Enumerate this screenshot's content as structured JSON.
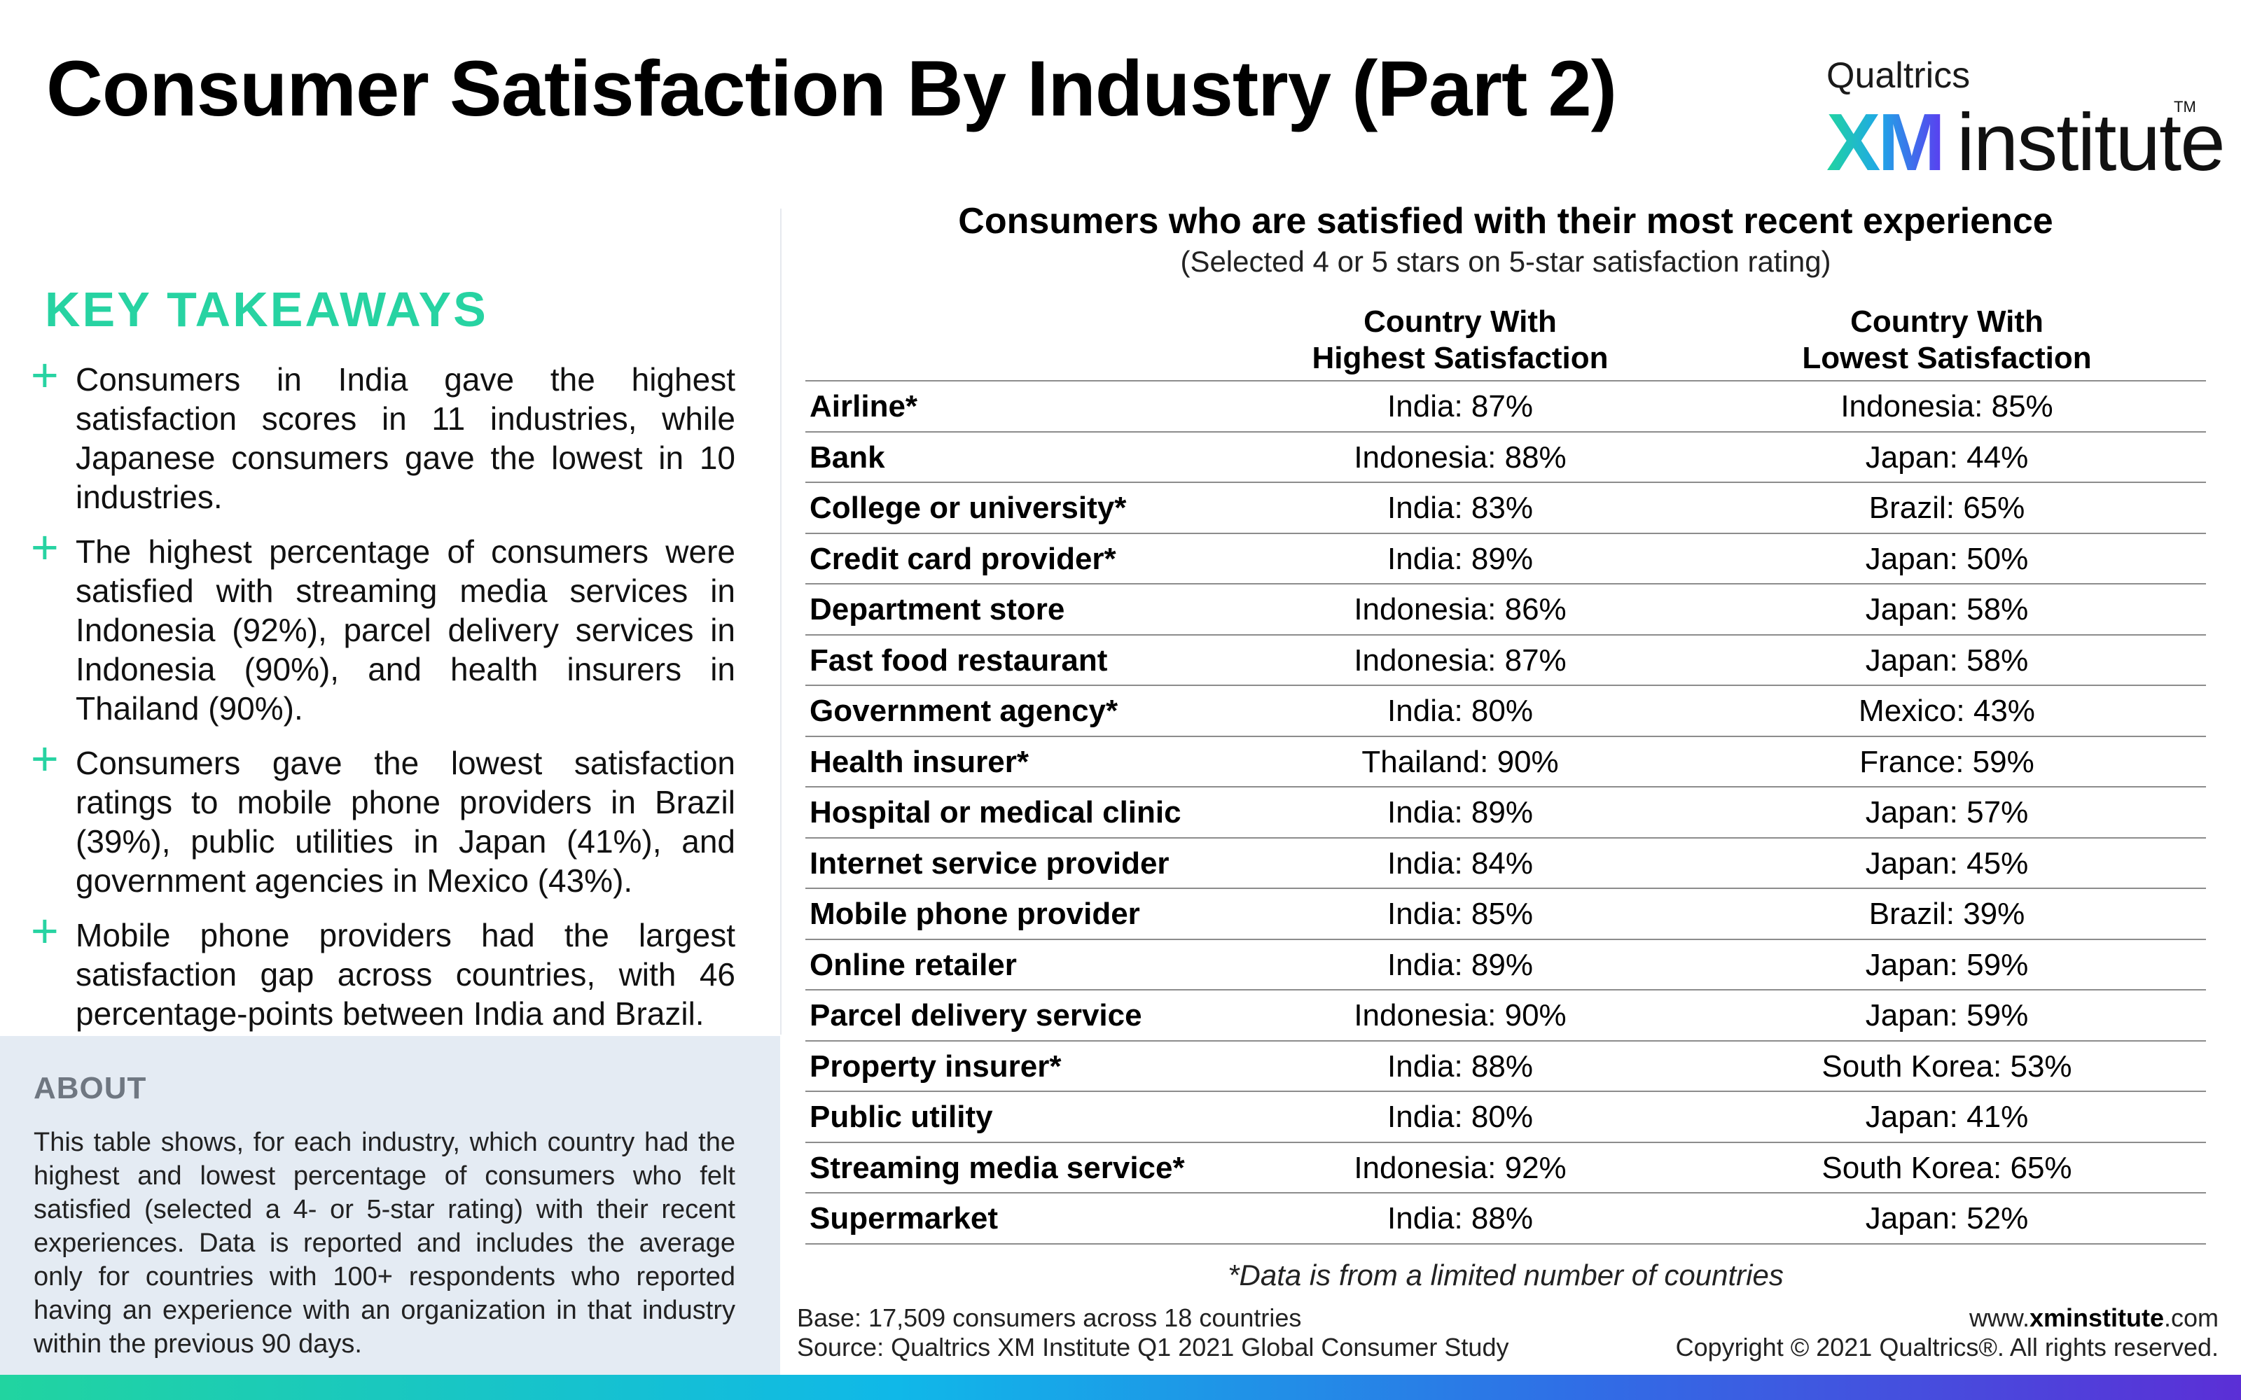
{
  "title": "Consumer Satisfaction By Industry (Part 2)",
  "logo": {
    "brand": "Qualtrics",
    "xm": "XM",
    "word": "institute",
    "tm": "TM"
  },
  "key_takeaways": {
    "heading": "KEY TAKEAWAYS",
    "bullet_symbol": "+",
    "items": [
      "Consumers in India gave the highest satisfaction scores in 11 industries, while Japanese consumers gave the lowest in 10 industries.",
      "The highest percentage of consumers were satisfied with streaming media services in Indonesia (92%), parcel delivery services in Indonesia (90%), and health insurers in Thailand (90%).",
      "Consumers gave the lowest satisfaction ratings to mobile phone providers in Brazil (39%), public utilities in Japan (41%), and government agencies in Mexico (43%).",
      "Mobile phone providers had the largest satisfaction gap across countries, with 46 percentage-points between India and Brazil."
    ]
  },
  "about": {
    "heading": "ABOUT",
    "text": "This table shows, for each industry, which country had the highest and lowest percentage of consumers who felt satisfied (selected a 4- or 5-star rating) with their recent experiences. Data is reported and includes the average only for countries with 100+ respondents who reported having an experience with an organization in that industry within the previous 90 days."
  },
  "table": {
    "title": "Consumers who are satisfied with their most recent experience",
    "subtitle": "(Selected 4 or 5 stars on 5-star satisfaction rating)",
    "col_highest_line1": "Country With",
    "col_highest_line2": "Highest Satisfaction",
    "col_lowest_line1": "Country With",
    "col_lowest_line2": "Lowest Satisfaction",
    "rows": [
      {
        "industry": "Airline*",
        "highest": "India: 87%",
        "lowest": "Indonesia: 85%"
      },
      {
        "industry": "Bank",
        "highest": "Indonesia: 88%",
        "lowest": "Japan: 44%"
      },
      {
        "industry": "College or university*",
        "highest": "India: 83%",
        "lowest": "Brazil: 65%"
      },
      {
        "industry": "Credit card provider*",
        "highest": "India: 89%",
        "lowest": "Japan: 50%"
      },
      {
        "industry": "Department store",
        "highest": "Indonesia: 86%",
        "lowest": "Japan: 58%"
      },
      {
        "industry": "Fast food restaurant",
        "highest": "Indonesia: 87%",
        "lowest": "Japan: 58%"
      },
      {
        "industry": "Government agency*",
        "highest": "India: 80%",
        "lowest": "Mexico: 43%"
      },
      {
        "industry": "Health insurer*",
        "highest": "Thailand: 90%",
        "lowest": "France: 59%"
      },
      {
        "industry": "Hospital or medical clinic",
        "highest": "India: 89%",
        "lowest": "Japan: 57%"
      },
      {
        "industry": "Internet service provider",
        "highest": "India: 84%",
        "lowest": "Japan: 45%"
      },
      {
        "industry": "Mobile phone provider",
        "highest": "India: 85%",
        "lowest": "Brazil: 39%"
      },
      {
        "industry": "Online retailer",
        "highest": "India: 89%",
        "lowest": "Japan: 59%"
      },
      {
        "industry": "Parcel delivery service",
        "highest": "Indonesia: 90%",
        "lowest": "Japan: 59%"
      },
      {
        "industry": "Property insurer*",
        "highest": "India: 88%",
        "lowest": "South Korea: 53%"
      },
      {
        "industry": "Public utility",
        "highest": "India: 80%",
        "lowest": "Japan: 41%"
      },
      {
        "industry": "Streaming media service*",
        "highest": "Indonesia: 92%",
        "lowest": "South Korea: 65%"
      },
      {
        "industry": "Supermarket",
        "highest": "India: 88%",
        "lowest": "Japan: 52%"
      }
    ],
    "footnote": "*Data is from a limited number of countries"
  },
  "footer": {
    "base": "Base: 17,509 consumers across 18 countries",
    "source": "Source: Qualtrics XM Institute Q1 2021 Global Consumer Study",
    "website_prefix": "www.",
    "website_bold": "xminstitute",
    "website_suffix": ".com",
    "copyright": "Copyright © 2021 Qualtrics®. All rights reserved."
  },
  "colors": {
    "accent": "#27d3a2",
    "about_bg": "#e4ebf3",
    "gradient_start": "#21d4a0",
    "gradient_end": "#5b2fd6"
  }
}
